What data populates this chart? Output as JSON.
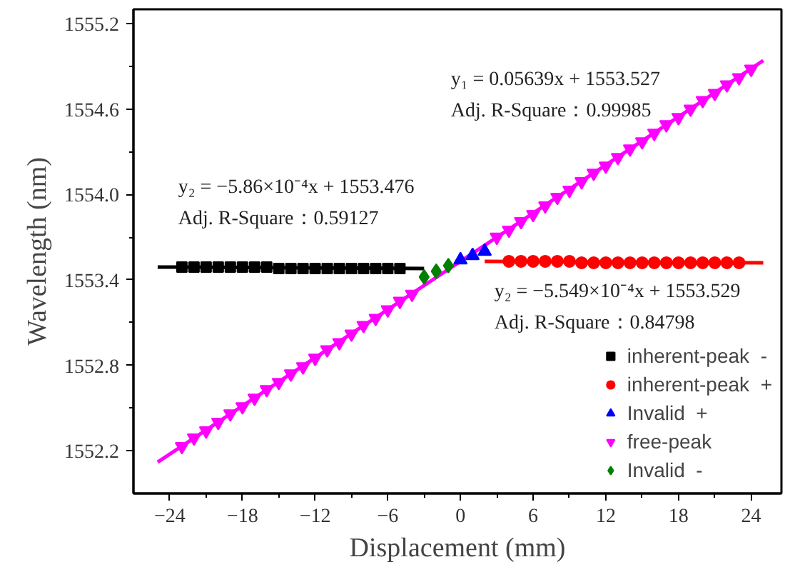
{
  "chart_data": {
    "type": "scatter",
    "xlabel": "Displacement (mm)",
    "ylabel": "Wavelength (nm)",
    "xlim": [
      -27,
      26.5
    ],
    "ylim": [
      1551.9,
      1555.3
    ],
    "xticks": [
      -24,
      -18,
      -12,
      -6,
      0,
      6,
      12,
      18,
      24
    ],
    "yticks": [
      1552.2,
      1552.8,
      {
        "value": 1553.4,
        "label": "1553.4"
      },
      {
        "value": 1554.0,
        "label": "1554.0"
      },
      1554.6,
      1555.2
    ],
    "grid": false,
    "legend": "bottom right",
    "series": [
      {
        "name": "inherent-peak  -",
        "color": "#000000",
        "marker": "square",
        "x": [
          -23,
          -22,
          -21,
          -20,
          -19,
          -18,
          -17,
          -16,
          -15,
          -14,
          -13,
          -12,
          -11,
          -10,
          -9,
          -8,
          -7,
          -6,
          -5
        ],
        "values": [
          1553.49,
          1553.49,
          1553.49,
          1553.49,
          1553.49,
          1553.49,
          1553.49,
          1553.49,
          1553.48,
          1553.48,
          1553.48,
          1553.48,
          1553.48,
          1553.48,
          1553.48,
          1553.48,
          1553.48,
          1553.48,
          1553.48
        ]
      },
      {
        "name": "inherent-peak  +",
        "color": "#ff0000",
        "marker": "circle",
        "x": [
          4,
          5,
          6,
          7,
          8,
          9,
          10,
          11,
          12,
          13,
          14,
          15,
          16,
          17,
          18,
          19,
          20,
          21,
          22,
          23
        ],
        "values": [
          1553.53,
          1553.53,
          1553.53,
          1553.53,
          1553.53,
          1553.53,
          1553.52,
          1553.52,
          1553.52,
          1553.52,
          1553.52,
          1553.52,
          1553.52,
          1553.52,
          1553.52,
          1553.52,
          1553.52,
          1553.52,
          1553.52,
          1553.52
        ]
      },
      {
        "name": "Invalid  +",
        "color": "#0000ff",
        "marker": "triangle",
        "x": [
          0,
          1,
          2
        ],
        "values": [
          1553.54,
          1553.57,
          1553.6
        ]
      },
      {
        "name": "free-peak",
        "color": "#ff00ff",
        "marker": "triangle_down",
        "x": [
          -23,
          -22,
          -21,
          -20,
          -19,
          -18,
          -17,
          -16,
          -15,
          -14,
          -13,
          -12,
          -11,
          -10,
          -9,
          -8,
          -7,
          -6,
          -5,
          -4,
          3,
          4,
          5,
          6,
          7,
          8,
          9,
          10,
          11,
          12,
          13,
          14,
          15,
          16,
          17,
          18,
          19,
          20,
          21,
          22,
          23,
          24
        ],
        "values": [
          1552.23,
          1552.29,
          1552.34,
          1552.4,
          1552.46,
          1552.51,
          1552.57,
          1552.63,
          1552.68,
          1552.74,
          1552.79,
          1552.85,
          1552.91,
          1552.96,
          1553.02,
          1553.08,
          1553.13,
          1553.19,
          1553.25,
          1553.3,
          1553.7,
          1553.75,
          1553.81,
          1553.86,
          1553.92,
          1553.98,
          1554.03,
          1554.09,
          1554.15,
          1554.2,
          1554.26,
          1554.32,
          1554.37,
          1554.43,
          1554.49,
          1554.54,
          1554.6,
          1554.66,
          1554.71,
          1554.77,
          1554.82,
          1554.88
        ]
      },
      {
        "name": "Invalid  -",
        "color": "#008000",
        "marker": "diamond",
        "x": [
          -3,
          -2,
          -1
        ],
        "values": [
          1553.42,
          1553.46,
          1553.5
        ]
      },
      {
        "type": "line",
        "color": "#000000",
        "x": [
          -25,
          -3
        ],
        "values": [
          1553.49,
          1553.48
        ]
      },
      {
        "type": "line",
        "color": "#ff0000",
        "x": [
          2,
          25
        ],
        "values": [
          1553.53,
          1553.52
        ]
      },
      {
        "type": "line",
        "color": "#ff00ff",
        "x": [
          -25,
          25
        ],
        "values": [
          1552.12,
          1554.94
        ]
      }
    ],
    "annotations": [
      "y₁ = 0.05639x + 1553.527",
      "Adj. R-Square：0.99985",
      "y₂ = −5.86×10⁻⁴x + 1553.476",
      "Adj. R-Square：0.59127",
      "y₂ = −5.549×10⁻⁴x + 1553.529",
      "Adj. R-Square：0.84798"
    ]
  }
}
